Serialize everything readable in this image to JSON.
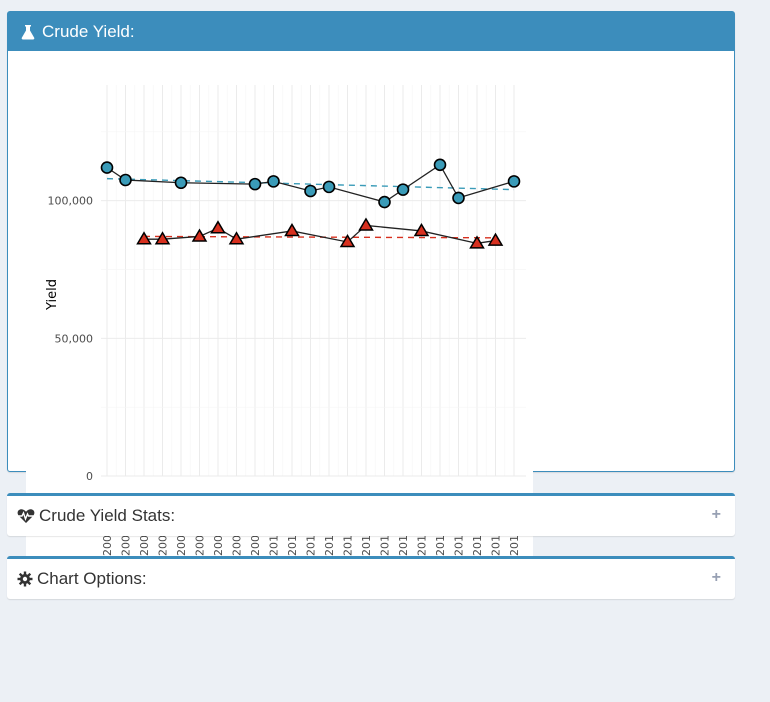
{
  "panel_main": {
    "title": "Crude Yield:",
    "icon": "flask-icon"
  },
  "panel_stats": {
    "title": "Crude Yield Stats:",
    "icon": "heartbeat-icon",
    "toggle": "+"
  },
  "panel_options": {
    "title": "Chart Options:",
    "icon": "gear-icon",
    "toggle": "+"
  },
  "colors": {
    "header": "#3c8dbc",
    "series1": "#3a9bb8",
    "series2": "#d7301f",
    "background": "#ecf0f5"
  },
  "chart_data": {
    "type": "line",
    "ylabel": "Yield",
    "ylim": [
      0,
      142000
    ],
    "yticks": [
      0,
      50000,
      100000
    ],
    "ytick_labels": [
      "0",
      "50,000",
      "100,000"
    ],
    "grid": true,
    "x_tick_labels": [
      "200",
      "200",
      "200",
      "200",
      "200",
      "200",
      "200",
      "200",
      "200",
      "201",
      "201",
      "201",
      "201",
      "201",
      "201",
      "201",
      "201",
      "201",
      "201",
      "201",
      "201",
      "201",
      "201"
    ],
    "series": [
      {
        "marker": "circle",
        "points": [
          [
            0,
            112000
          ],
          [
            1,
            107500
          ],
          [
            4,
            106500
          ],
          [
            8,
            106000
          ],
          [
            9,
            107000
          ],
          [
            11,
            103500
          ],
          [
            12,
            105000
          ],
          [
            15,
            99500
          ],
          [
            16,
            104000
          ],
          [
            18,
            113000
          ],
          [
            19,
            101000
          ],
          [
            22,
            107000
          ]
        ],
        "trend": [
          108000,
          104000
        ]
      },
      {
        "marker": "triangle",
        "points": [
          [
            2,
            86000
          ],
          [
            3,
            86000
          ],
          [
            5,
            87000
          ],
          [
            6,
            90000
          ],
          [
            7,
            86000
          ],
          [
            10,
            89000
          ],
          [
            13,
            85000
          ],
          [
            14,
            91000
          ],
          [
            17,
            89000
          ],
          [
            20,
            84500
          ],
          [
            21,
            85500
          ]
        ],
        "trend": [
          87000,
          86500
        ]
      }
    ]
  }
}
